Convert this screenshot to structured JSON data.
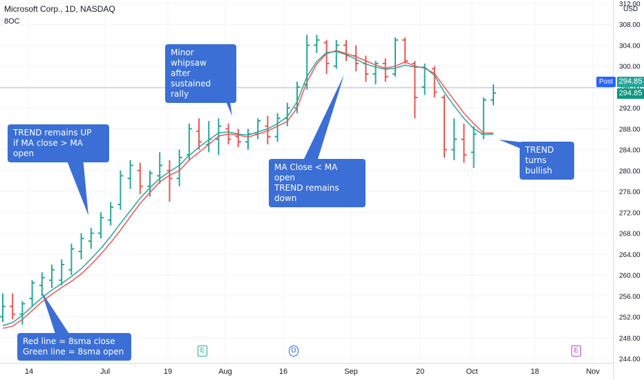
{
  "header": {
    "symbol_title": "Microsoft Corp., 1D, NASDAQ",
    "indicator": "8OC",
    "currency": "USD"
  },
  "badges": {
    "post_label": "Post",
    "price_1": "294.85",
    "price_2": "294.85"
  },
  "annotations": {
    "trend_up": "TREND remains UP\nif MA close > MA open",
    "whipsaw": "Minor whipsaw\nafter sustained\nrally",
    "ma_close": "MA Close < MA open\nTREND remains down",
    "trend_bullish": "TREND turns\nbullish",
    "legend": "Red line = 8sma close\nGreen line = 8sma open"
  },
  "events": {
    "e1": "E",
    "d1": "D",
    "e2": "E"
  },
  "colors": {
    "up": "#26a69a",
    "down": "#ef5350",
    "sma_close": "#ef5350",
    "sma_open": "#26a69a",
    "callout": "#3b6fd6",
    "grid": "#f0f3fa",
    "text": "#131722"
  },
  "chart_data": {
    "type": "ohlc",
    "title": "Microsoft Corp., 1D, NASDAQ",
    "y_axis": {
      "ticks": [
        244.0,
        248.0,
        252.0,
        256.0,
        260.0,
        264.0,
        268.0,
        272.0,
        276.0,
        280.0,
        284.0,
        288.0,
        292.0,
        296.0,
        300.0,
        304.0,
        308.0,
        312.0
      ],
      "range": [
        244.0,
        312.0
      ]
    },
    "x_axis": {
      "ticks": [
        "14",
        "Jul",
        "19",
        "Aug",
        "16",
        "Sep",
        "20",
        "Oct",
        "18",
        "Nov"
      ]
    },
    "grid": true,
    "last_price": 294.85,
    "series": [
      {
        "name": "Red line = 8sma close",
        "values": [
          249.8,
          250.2,
          251.5,
          253.2,
          254.9,
          256.3,
          257.6,
          258.8,
          260.2,
          262.0,
          264.0,
          266.2,
          268.6,
          271.2,
          273.7,
          275.8,
          277.8,
          279.1,
          280.0,
          282.0,
          283.5,
          285.0,
          286.6,
          287.0,
          286.8,
          286.4,
          287.0,
          287.6,
          288.5,
          289.4,
          292.0,
          297.0,
          300.4,
          302.4,
          303.0,
          302.4,
          301.8,
          301.0,
          300.2,
          299.6,
          300.0,
          300.8,
          300.0,
          299.6,
          298.6,
          296.0,
          293.5,
          291.0,
          289.0,
          287.2,
          287.2
        ]
      },
      {
        "name": "Green line = 8sma open",
        "values": [
          250.3,
          250.9,
          252.3,
          254.0,
          255.7,
          257.1,
          258.4,
          259.7,
          261.2,
          263.1,
          265.1,
          267.4,
          269.9,
          272.3,
          274.7,
          276.7,
          278.5,
          279.8,
          281.0,
          282.9,
          284.5,
          285.9,
          287.2,
          287.4,
          287.0,
          286.8,
          287.4,
          288.0,
          289.0,
          290.3,
          293.2,
          298.0,
          300.9,
          302.6,
          302.8,
          302.2,
          301.3,
          300.4,
          299.8,
          299.4,
          299.6,
          300.2,
          299.8,
          299.8,
          298.2,
          295.0,
          292.4,
          290.0,
          288.0,
          286.9,
          287.0
        ]
      }
    ],
    "ohlc": [
      {
        "o": 252.0,
        "h": 256.5,
        "l": 251.0,
        "c": 254.0
      },
      {
        "o": 254.0,
        "h": 256.5,
        "l": 251.5,
        "c": 252.5
      },
      {
        "o": 252.5,
        "h": 255.0,
        "l": 250.5,
        "c": 254.5
      },
      {
        "o": 255.5,
        "h": 259.0,
        "l": 254.0,
        "c": 258.5
      },
      {
        "o": 258.0,
        "h": 260.5,
        "l": 256.0,
        "c": 259.5
      },
      {
        "o": 259.0,
        "h": 262.0,
        "l": 257.5,
        "c": 261.0
      },
      {
        "o": 259.0,
        "h": 263.0,
        "l": 258.0,
        "c": 262.0
      },
      {
        "o": 261.0,
        "h": 266.0,
        "l": 260.0,
        "c": 265.0
      },
      {
        "o": 264.5,
        "h": 268.0,
        "l": 263.0,
        "c": 267.0
      },
      {
        "o": 266.5,
        "h": 269.0,
        "l": 265.0,
        "c": 268.0
      },
      {
        "o": 268.0,
        "h": 272.0,
        "l": 267.0,
        "c": 271.0
      },
      {
        "o": 270.5,
        "h": 274.0,
        "l": 269.5,
        "c": 273.0
      },
      {
        "o": 273.5,
        "h": 280.0,
        "l": 272.5,
        "c": 279.0
      },
      {
        "o": 278.5,
        "h": 282.0,
        "l": 276.5,
        "c": 281.0
      },
      {
        "o": 280.0,
        "h": 281.5,
        "l": 275.5,
        "c": 277.0
      },
      {
        "o": 277.0,
        "h": 280.0,
        "l": 275.0,
        "c": 279.5
      },
      {
        "o": 279.0,
        "h": 283.5,
        "l": 277.5,
        "c": 281.0
      },
      {
        "o": 280.0,
        "h": 282.0,
        "l": 274.0,
        "c": 278.5
      },
      {
        "o": 278.5,
        "h": 284.0,
        "l": 277.0,
        "c": 282.5
      },
      {
        "o": 283.0,
        "h": 289.0,
        "l": 282.0,
        "c": 288.0
      },
      {
        "o": 287.5,
        "h": 290.0,
        "l": 284.0,
        "c": 285.5
      },
      {
        "o": 285.0,
        "h": 289.5,
        "l": 283.5,
        "c": 286.0
      },
      {
        "o": 286.0,
        "h": 290.0,
        "l": 283.0,
        "c": 288.5
      },
      {
        "o": 288.0,
        "h": 289.0,
        "l": 285.0,
        "c": 286.0
      },
      {
        "o": 286.5,
        "h": 288.0,
        "l": 284.5,
        "c": 285.5
      },
      {
        "o": 285.5,
        "h": 288.0,
        "l": 284.0,
        "c": 287.0
      },
      {
        "o": 287.0,
        "h": 290.0,
        "l": 286.0,
        "c": 289.5
      },
      {
        "o": 288.5,
        "h": 290.5,
        "l": 285.0,
        "c": 286.5
      },
      {
        "o": 286.5,
        "h": 291.0,
        "l": 285.5,
        "c": 290.0
      },
      {
        "o": 290.0,
        "h": 293.0,
        "l": 288.5,
        "c": 292.0
      },
      {
        "o": 292.0,
        "h": 297.0,
        "l": 291.0,
        "c": 296.0
      },
      {
        "o": 296.5,
        "h": 306.0,
        "l": 295.5,
        "c": 304.0
      },
      {
        "o": 304.0,
        "h": 306.0,
        "l": 302.5,
        "c": 305.0
      },
      {
        "o": 304.5,
        "h": 305.0,
        "l": 298.5,
        "c": 300.5
      },
      {
        "o": 300.0,
        "h": 305.0,
        "l": 299.5,
        "c": 304.0
      },
      {
        "o": 304.0,
        "h": 305.0,
        "l": 301.0,
        "c": 302.0
      },
      {
        "o": 302.0,
        "h": 304.0,
        "l": 299.0,
        "c": 300.5
      },
      {
        "o": 300.5,
        "h": 302.0,
        "l": 297.0,
        "c": 298.5
      },
      {
        "o": 298.5,
        "h": 301.0,
        "l": 296.5,
        "c": 300.5
      },
      {
        "o": 300.5,
        "h": 301.5,
        "l": 297.0,
        "c": 298.0
      },
      {
        "o": 298.5,
        "h": 305.5,
        "l": 298.0,
        "c": 305.0
      },
      {
        "o": 305.0,
        "h": 305.5,
        "l": 300.5,
        "c": 301.0
      },
      {
        "o": 300.5,
        "h": 301.0,
        "l": 290.0,
        "c": 294.0
      },
      {
        "o": 296.0,
        "h": 300.5,
        "l": 294.5,
        "c": 299.5
      },
      {
        "o": 299.5,
        "h": 300.0,
        "l": 294.0,
        "c": 295.0
      },
      {
        "o": 294.0,
        "h": 294.5,
        "l": 282.5,
        "c": 284.0
      },
      {
        "o": 284.0,
        "h": 290.0,
        "l": 282.0,
        "c": 286.0
      },
      {
        "o": 286.0,
        "h": 289.0,
        "l": 281.5,
        "c": 283.0
      },
      {
        "o": 283.5,
        "h": 288.5,
        "l": 280.5,
        "c": 287.0
      },
      {
        "o": 287.0,
        "h": 294.0,
        "l": 286.0,
        "c": 293.5
      },
      {
        "o": 293.5,
        "h": 296.5,
        "l": 292.5,
        "c": 294.85
      }
    ]
  }
}
